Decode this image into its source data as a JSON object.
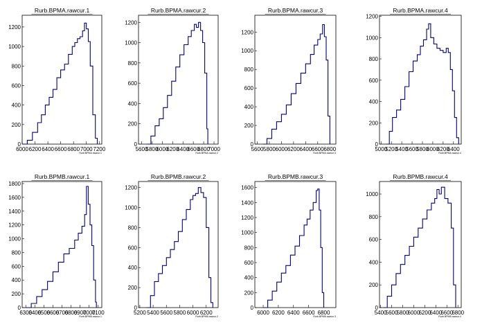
{
  "chart_data": [
    {
      "type": "line",
      "title": "Rurb.BPMA.rawcur.1",
      "xlabel": "Rurb.BPMA.rawcur.1",
      "xlim": [
        6000,
        7240
      ],
      "ylim": [
        0,
        1320
      ],
      "xticks": [
        "6000",
        "6200",
        "6400",
        "6600",
        "6800",
        "7000",
        "7200"
      ],
      "yticks": [
        "0",
        "200",
        "400",
        "600",
        "800",
        "1000",
        "1200"
      ],
      "series": [
        {
          "x": [
            6000,
            6080,
            6160,
            6240,
            6300,
            6360,
            6420,
            6480,
            6540,
            6600,
            6660,
            6720,
            6780,
            6820,
            6860,
            6900,
            6940,
            6970,
            7000,
            7030,
            7060,
            7100,
            7140,
            7170
          ],
          "values": [
            0,
            40,
            120,
            220,
            300,
            400,
            480,
            560,
            680,
            760,
            820,
            920,
            1000,
            1040,
            1080,
            1100,
            1160,
            1240,
            1180,
            1050,
            800,
            300,
            60,
            0
          ]
        }
      ]
    },
    {
      "type": "line",
      "title": "Rurb.BPMA.rawcur.2",
      "xlabel": "Rurb.BPMA.rawcur.2",
      "xlim": [
        5540,
        7080
      ],
      "ylim": [
        0,
        1270
      ],
      "xticks": [
        "5600",
        "5800",
        "6000",
        "6200",
        "6400",
        "6600",
        "6800",
        "7000"
      ],
      "yticks": [
        "0",
        "200",
        "400",
        "600",
        "800",
        "1000",
        "1200"
      ],
      "series": [
        {
          "x": [
            5700,
            5780,
            5860,
            5940,
            6020,
            6100,
            6180,
            6260,
            6340,
            6420,
            6500,
            6560,
            6620,
            6660,
            6700,
            6740,
            6780,
            6820,
            6860,
            6880
          ],
          "values": [
            0,
            80,
            180,
            250,
            360,
            480,
            620,
            760,
            880,
            980,
            1060,
            1120,
            1180,
            1150,
            1200,
            1120,
            1000,
            700,
            150,
            0
          ]
        }
      ]
    },
    {
      "type": "line",
      "title": "Rurb.BPMA.rawcur.3",
      "xlabel": "Rurb.BPMA.rawcur.3",
      "xlim": [
        5560,
        6900
      ],
      "ylim": [
        0,
        1380
      ],
      "xticks": [
        "5600",
        "5800",
        "6000",
        "6200",
        "6400",
        "6600",
        "6800"
      ],
      "yticks": [
        "0",
        "200",
        "400",
        "600",
        "800",
        "1000",
        "1200"
      ],
      "series": [
        {
          "x": [
            5700,
            5760,
            5840,
            5920,
            6000,
            6080,
            6160,
            6240,
            6320,
            6400,
            6480,
            6540,
            6600,
            6640,
            6680,
            6710,
            6740,
            6770,
            6800
          ],
          "values": [
            0,
            60,
            160,
            240,
            320,
            420,
            540,
            650,
            760,
            860,
            960,
            1060,
            1120,
            1180,
            1280,
            1150,
            900,
            300,
            0
          ]
        }
      ]
    },
    {
      "type": "line",
      "title": "Rurb.BPMA.rawcur.4",
      "xlabel": "Rurb.BPMA.rawcur.4",
      "xlim": [
        4970,
        6550
      ],
      "ylim": [
        0,
        1210
      ],
      "xticks": [
        "5000",
        "5200",
        "5400",
        "5600",
        "5800",
        "6000",
        "6200",
        "6400"
      ],
      "yticks": [
        "0",
        "200",
        "400",
        "600",
        "800",
        "1000",
        "1200"
      ],
      "series": [
        {
          "x": [
            5100,
            5160,
            5220,
            5300,
            5380,
            5460,
            5540,
            5620,
            5700,
            5760,
            5820,
            5880,
            5920,
            5960,
            6020,
            6080,
            6140,
            6200,
            6260,
            6300,
            6340,
            6380,
            6420,
            6460,
            6500
          ],
          "values": [
            0,
            120,
            250,
            320,
            420,
            540,
            680,
            780,
            840,
            920,
            980,
            1080,
            1130,
            1000,
            940,
            900,
            880,
            860,
            900,
            860,
            700,
            500,
            250,
            60,
            0
          ]
        }
      ]
    },
    {
      "type": "line",
      "title": "Rurb.BPMB.rawcur.1",
      "xlabel": "Rurb.BPMB.rawcur.1",
      "xlim": [
        6260,
        7140
      ],
      "ylim": [
        0,
        1830
      ],
      "xticks": [
        "6300",
        "6400",
        "6500",
        "6600",
        "6700",
        "6800",
        "6900",
        "7000",
        "7100"
      ],
      "yticks": [
        "0",
        "200",
        "400",
        "600",
        "800",
        "1000",
        "1200",
        "1400",
        "1600",
        "1800"
      ],
      "series": [
        {
          "x": [
            6300,
            6360,
            6420,
            6480,
            6540,
            6600,
            6660,
            6720,
            6780,
            6840,
            6880,
            6920,
            6950,
            6970,
            6990,
            7010,
            7030,
            7050,
            7070,
            7080
          ],
          "values": [
            0,
            60,
            160,
            260,
            380,
            520,
            660,
            780,
            860,
            980,
            1080,
            1180,
            1350,
            1760,
            1500,
            1200,
            900,
            400,
            80,
            0
          ]
        }
      ]
    },
    {
      "type": "line",
      "title": "Rurb.BPMB.rawcur.2",
      "xlabel": "Rurb.BPMB.rawcur.2",
      "xlim": [
        5180,
        6380
      ],
      "ylim": [
        0,
        1260
      ],
      "xticks": [
        "5200",
        "5400",
        "5600",
        "5800",
        "6000",
        "6200"
      ],
      "yticks": [
        "0",
        "200",
        "400",
        "600",
        "800",
        "1000",
        "1200"
      ],
      "series": [
        {
          "x": [
            5300,
            5360,
            5420,
            5480,
            5540,
            5600,
            5660,
            5720,
            5780,
            5840,
            5900,
            5960,
            6000,
            6040,
            6080,
            6120,
            6160,
            6200,
            6240,
            6270,
            6300
          ],
          "values": [
            0,
            120,
            260,
            340,
            420,
            500,
            580,
            660,
            760,
            880,
            980,
            1080,
            1120,
            1140,
            1200,
            1150,
            1100,
            800,
            300,
            50,
            0
          ]
        }
      ]
    },
    {
      "type": "line",
      "title": "Rurb.BPMB.rawcur.3",
      "xlabel": "Rurb.BPMB.rawcur.3",
      "xlim": [
        5890,
        6960
      ],
      "ylim": [
        0,
        1680
      ],
      "xticks": [
        "6000",
        "6200",
        "6400",
        "6600",
        "6800"
      ],
      "yticks": [
        "0",
        "200",
        "400",
        "600",
        "800",
        "1000",
        "1200",
        "1400",
        "1600"
      ],
      "series": [
        {
          "x": [
            6000,
            6060,
            6120,
            6180,
            6240,
            6300,
            6360,
            6420,
            6480,
            6540,
            6580,
            6620,
            6660,
            6700,
            6720,
            6740,
            6760,
            6780,
            6800
          ],
          "values": [
            0,
            100,
            220,
            340,
            460,
            560,
            700,
            820,
            960,
            1100,
            1180,
            1300,
            1400,
            1560,
            1580,
            1300,
            800,
            200,
            0
          ]
        }
      ]
    },
    {
      "type": "line",
      "title": "Rurb.BPMB.rawcur.4",
      "xlabel": "Rurb.BPMB.rawcur.4",
      "xlim": [
        5380,
        6860
      ],
      "ylim": [
        0,
        1110
      ],
      "xticks": [
        "5400",
        "5600",
        "5800",
        "6000",
        "6200",
        "6400",
        "6600",
        "6800"
      ],
      "yticks": [
        "0",
        "200",
        "400",
        "600",
        "800",
        "1000"
      ],
      "series": [
        {
          "x": [
            5450,
            5520,
            5600,
            5680,
            5760,
            5840,
            5920,
            6000,
            6080,
            6160,
            6240,
            6320,
            6380,
            6420,
            6460,
            6500,
            6560,
            6620,
            6680,
            6720,
            6760
          ],
          "values": [
            0,
            100,
            200,
            300,
            380,
            460,
            540,
            620,
            700,
            780,
            860,
            920,
            960,
            1040,
            1000,
            1060,
            960,
            920,
            700,
            200,
            0
          ]
        }
      ]
    }
  ],
  "colors": {
    "line": "#000080",
    "frame": "#000000",
    "background": "#ffffff"
  }
}
